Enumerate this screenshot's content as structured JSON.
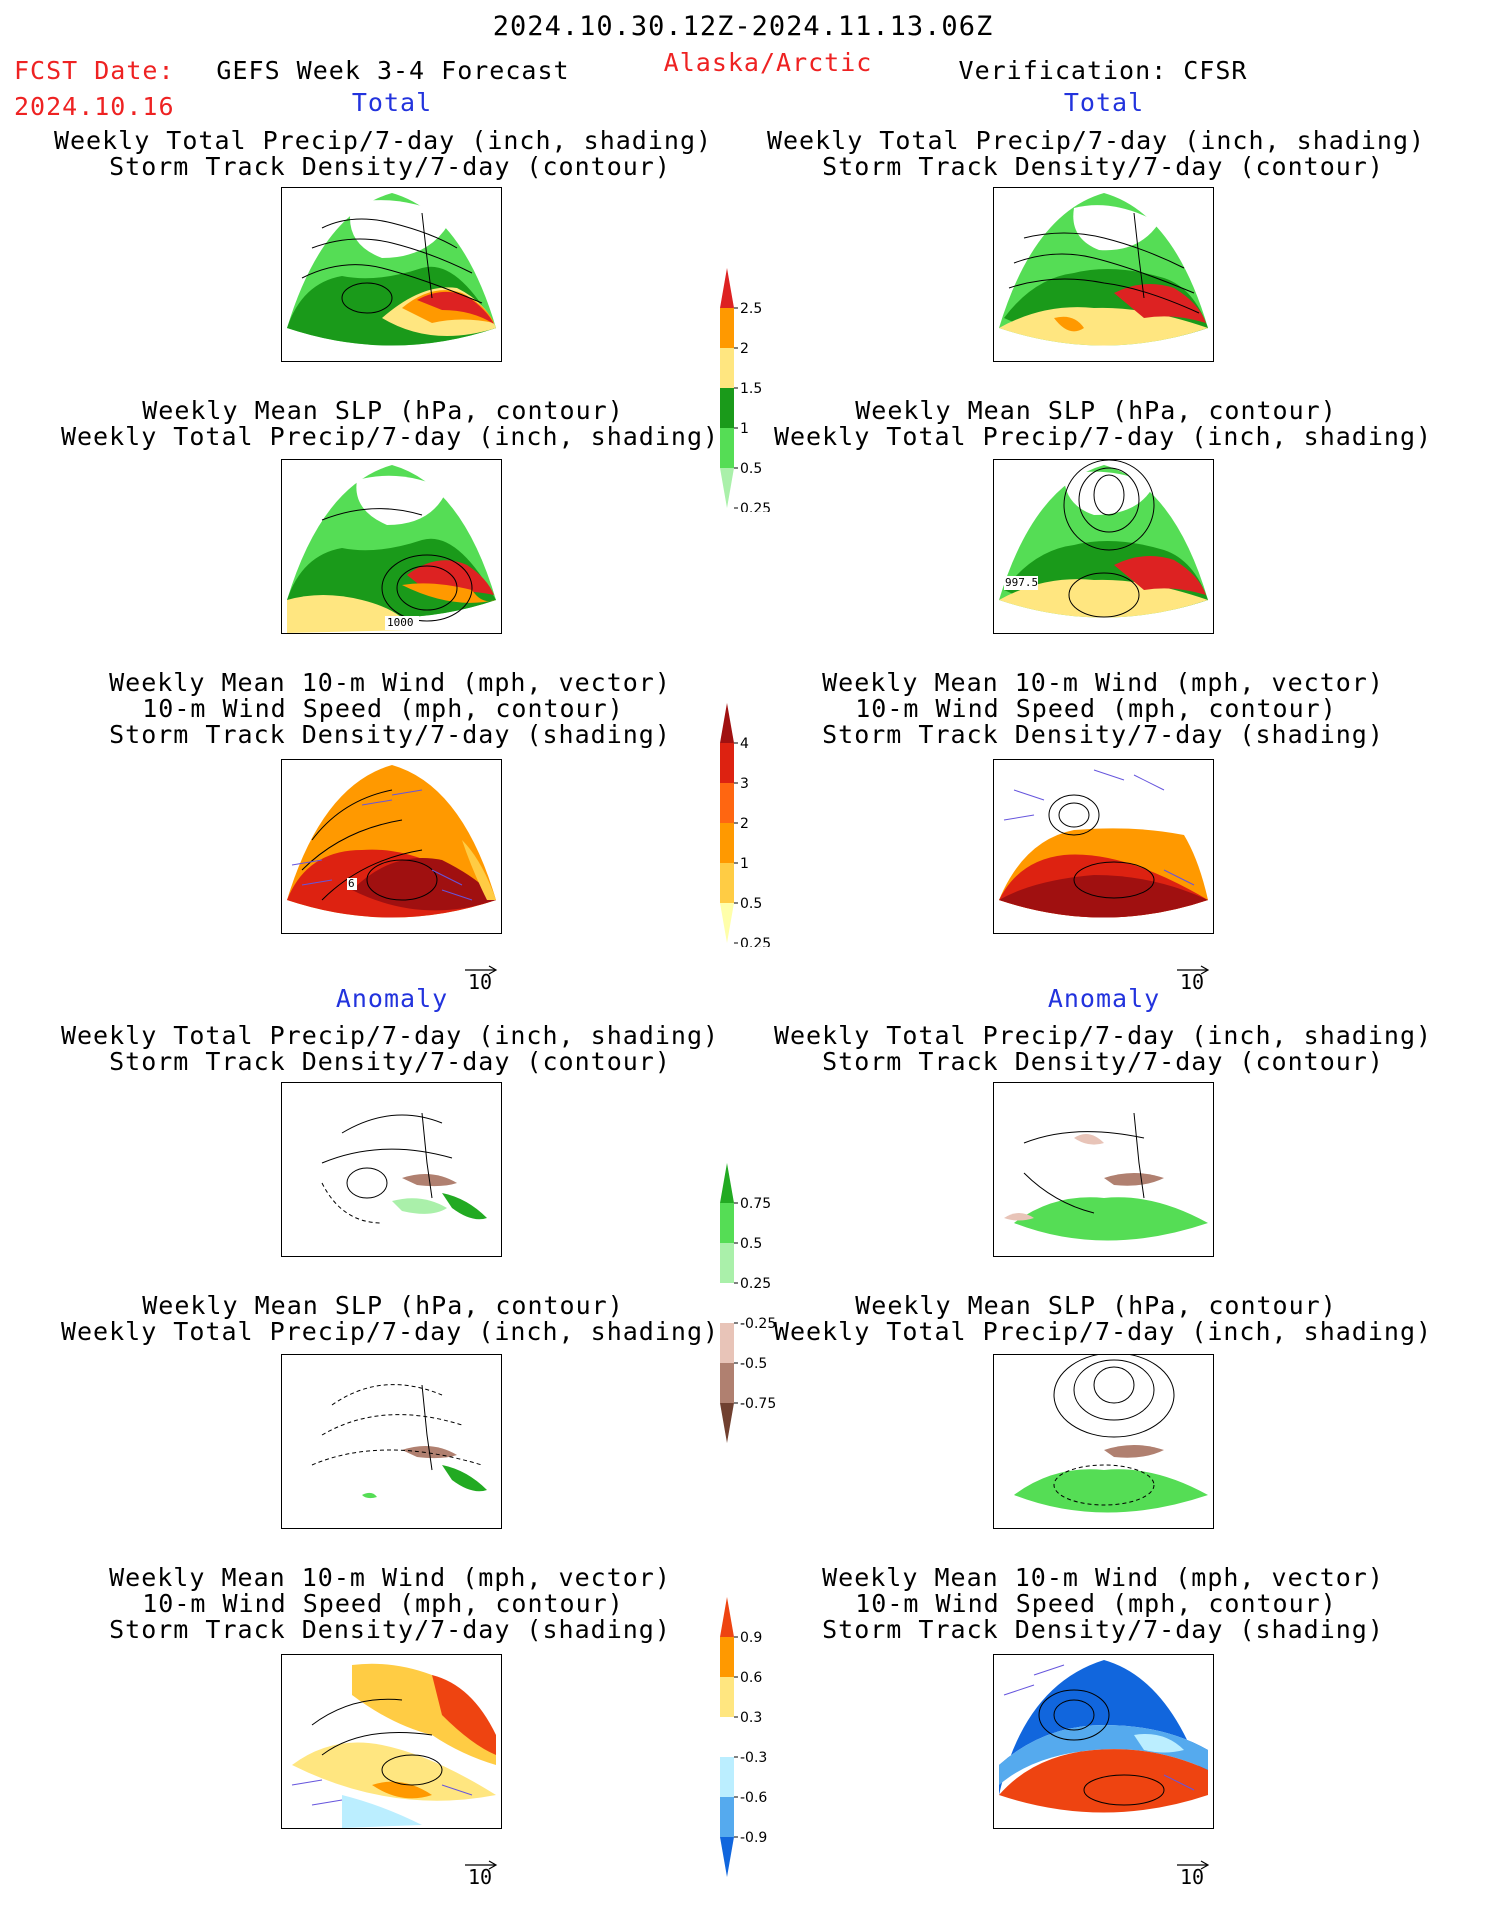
{
  "header": {
    "date_range": "2024.10.30.12Z-2024.11.13.06Z",
    "fcst_label": "FCST Date:",
    "fcst_date": "2024.10.16",
    "model": "GEFS Week 3-4 Forecast",
    "region": "Alaska/Arctic",
    "verification": "Verification: CFSR"
  },
  "sections": {
    "total_left": "Total",
    "total_right": "Total",
    "anomaly_left": "Anomaly",
    "anomaly_right": "Anomaly"
  },
  "titles": {
    "precip_storm": [
      "Weekly Total Precip/7-day (inch, shading)",
      "Storm Track Density/7-day (contour)"
    ],
    "slp_precip": [
      "Weekly Mean SLP (hPa, contour)",
      "Weekly Total Precip/7-day (inch, shading)"
    ],
    "wind_storm": [
      "Weekly Mean 10-m Wind (mph, vector)",
      "10-m Wind Speed (mph, contour)",
      "Storm Track Density/7-day (shading)"
    ]
  },
  "panel_labels": {
    "slp_total_left": "1000",
    "slp_total_right": "997.5",
    "wind_total_left": "6"
  },
  "vector_ref": "10",
  "colorbars": {
    "precip_total": {
      "ticks": [
        "2.5",
        "2",
        "1.5",
        "1",
        "0.5",
        "0.25"
      ],
      "colors": [
        "#dd2222",
        "#ff9900",
        "#ffe680",
        "#1a9a1a",
        "#55dd55",
        "#aaf0aa"
      ]
    },
    "storm_total": {
      "ticks": [
        "4",
        "3",
        "2",
        "1",
        "0.5",
        "0.25"
      ],
      "colors": [
        "#a01010",
        "#dd2211",
        "#ff6611",
        "#ff9900",
        "#ffcc44",
        "#ffffaa"
      ]
    },
    "precip_anom": {
      "ticks": [
        "0.75",
        "0.5",
        "0.25",
        "-0.25",
        "-0.5",
        "-0.75"
      ],
      "colors": [
        "#22aa22",
        "#55dd55",
        "#aaf0aa",
        "#ffffff",
        "#e8c4b8",
        "#b08070",
        "#704030"
      ]
    },
    "storm_anom": {
      "ticks": [
        "0.9",
        "0.6",
        "0.3",
        "-0.3",
        "-0.6",
        "-0.9"
      ],
      "colors": [
        "#ee4411",
        "#ff9900",
        "#ffe680",
        "#ffffff",
        "#bbeeff",
        "#55aaee",
        "#1166dd"
      ]
    }
  },
  "colors": {
    "header_red": "#ee2222",
    "section_blue": "#2233dd"
  }
}
